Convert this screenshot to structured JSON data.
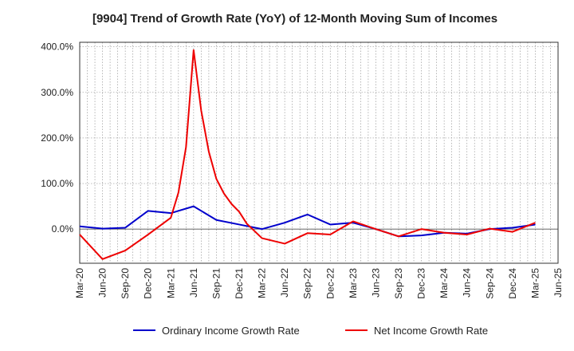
{
  "chart_data": {
    "type": "line",
    "title": "[9904]  Trend of Growth Rate (YoY) of 12-Month Moving Sum of Incomes",
    "xlabel": "",
    "ylabel": "",
    "ylim": [
      -75,
      410
    ],
    "y_ticks": [
      {
        "value": 0,
        "label": "0.0%"
      },
      {
        "value": 100,
        "label": "100.0%"
      },
      {
        "value": 200,
        "label": "200.0%"
      },
      {
        "value": 300,
        "label": "300.0%"
      },
      {
        "value": 400,
        "label": "400.0%"
      }
    ],
    "x_ticks": [
      "Mar-20",
      "Jun-20",
      "Sep-20",
      "Dec-20",
      "Mar-21",
      "Jun-21",
      "Sep-21",
      "Dec-21",
      "Mar-22",
      "Jun-22",
      "Sep-22",
      "Dec-22",
      "Mar-23",
      "Jun-23",
      "Sep-23",
      "Dec-23",
      "Mar-24",
      "Jun-24",
      "Sep-24",
      "Dec-24",
      "Mar-25",
      "Jun-25"
    ],
    "grid": true,
    "legend_position": "bottom",
    "series": [
      {
        "name": "Ordinary Income Growth Rate",
        "color": "#0000cc",
        "points": [
          [
            0,
            6
          ],
          [
            3,
            1
          ],
          [
            6,
            3
          ],
          [
            9,
            40
          ],
          [
            12,
            35
          ],
          [
            15,
            50
          ],
          [
            18,
            20
          ],
          [
            21,
            10
          ],
          [
            24,
            0
          ],
          [
            27,
            14
          ],
          [
            30,
            32
          ],
          [
            33,
            10
          ],
          [
            36,
            14
          ],
          [
            39,
            0
          ],
          [
            42,
            -16
          ],
          [
            45,
            -14
          ],
          [
            48,
            -8
          ],
          [
            51,
            -10
          ],
          [
            54,
            0
          ],
          [
            57,
            3
          ],
          [
            60,
            10
          ]
        ]
      },
      {
        "name": "Net Income Growth Rate",
        "color": "#ee0000",
        "points": [
          [
            0,
            -12
          ],
          [
            3,
            -66
          ],
          [
            6,
            -47
          ],
          [
            9,
            -12
          ],
          [
            12,
            25
          ],
          [
            13,
            80
          ],
          [
            14,
            180
          ],
          [
            15,
            393
          ],
          [
            16,
            260
          ],
          [
            17,
            170
          ],
          [
            18,
            110
          ],
          [
            19,
            78
          ],
          [
            20,
            55
          ],
          [
            21,
            38
          ],
          [
            22,
            12
          ],
          [
            24,
            -20
          ],
          [
            27,
            -32
          ],
          [
            30,
            -9
          ],
          [
            33,
            -12
          ],
          [
            36,
            17
          ],
          [
            39,
            0
          ],
          [
            42,
            -16
          ],
          [
            45,
            0
          ],
          [
            48,
            -8
          ],
          [
            51,
            -12
          ],
          [
            54,
            1
          ],
          [
            57,
            -6
          ],
          [
            60,
            14
          ]
        ]
      }
    ]
  }
}
